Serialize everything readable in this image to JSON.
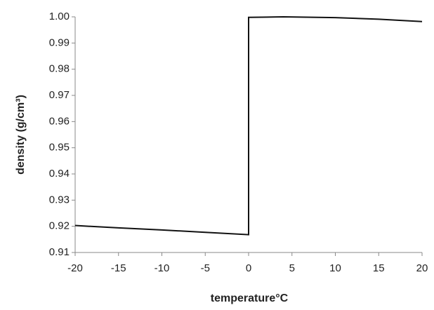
{
  "chart_data": {
    "type": "line",
    "x_label": "temperature°C",
    "y_label": "density (g/cm³)",
    "x": [
      -20,
      -15,
      -10,
      -5,
      0,
      0,
      4,
      10,
      15,
      20
    ],
    "series": [
      {
        "color": "#111111",
        "values": [
          0.9203,
          0.9194,
          0.9186,
          0.9177,
          0.9168,
          0.9998,
          1.0,
          0.9997,
          0.9991,
          0.9982
        ]
      }
    ],
    "xlim": [
      -20,
      20
    ],
    "xticks": [
      -20,
      -15,
      -10,
      -5,
      0,
      5,
      10,
      15,
      20
    ],
    "ylim": [
      0.91,
      1.0
    ],
    "yticks": [
      0.91,
      0.92,
      0.93,
      0.94,
      0.95,
      0.96,
      0.97,
      0.98,
      0.99,
      {
        "value": 1.0,
        "label": "1.00"
      }
    ],
    "grid": false
  }
}
